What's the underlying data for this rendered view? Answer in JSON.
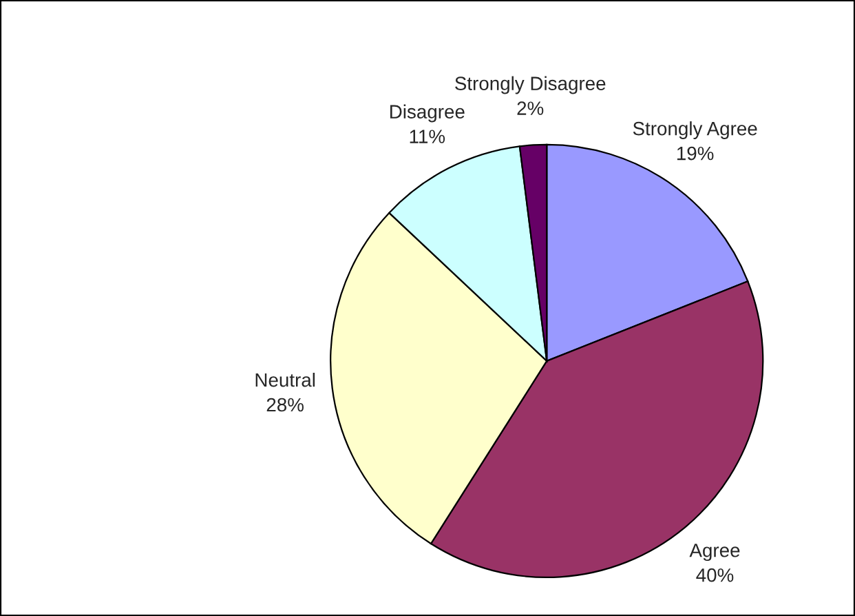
{
  "chart_data": {
    "type": "pie",
    "categories": [
      "Strongly Agree",
      "Agree",
      "Neutral",
      "Disagree",
      "Strongly Disagree"
    ],
    "values": [
      19,
      40,
      28,
      11,
      2
    ],
    "colors": [
      "#9999ff",
      "#993366",
      "#ffffcc",
      "#ccffff",
      "#660066"
    ],
    "value_labels": [
      "19%",
      "40%",
      "28%",
      "11%",
      "2%"
    ]
  }
}
